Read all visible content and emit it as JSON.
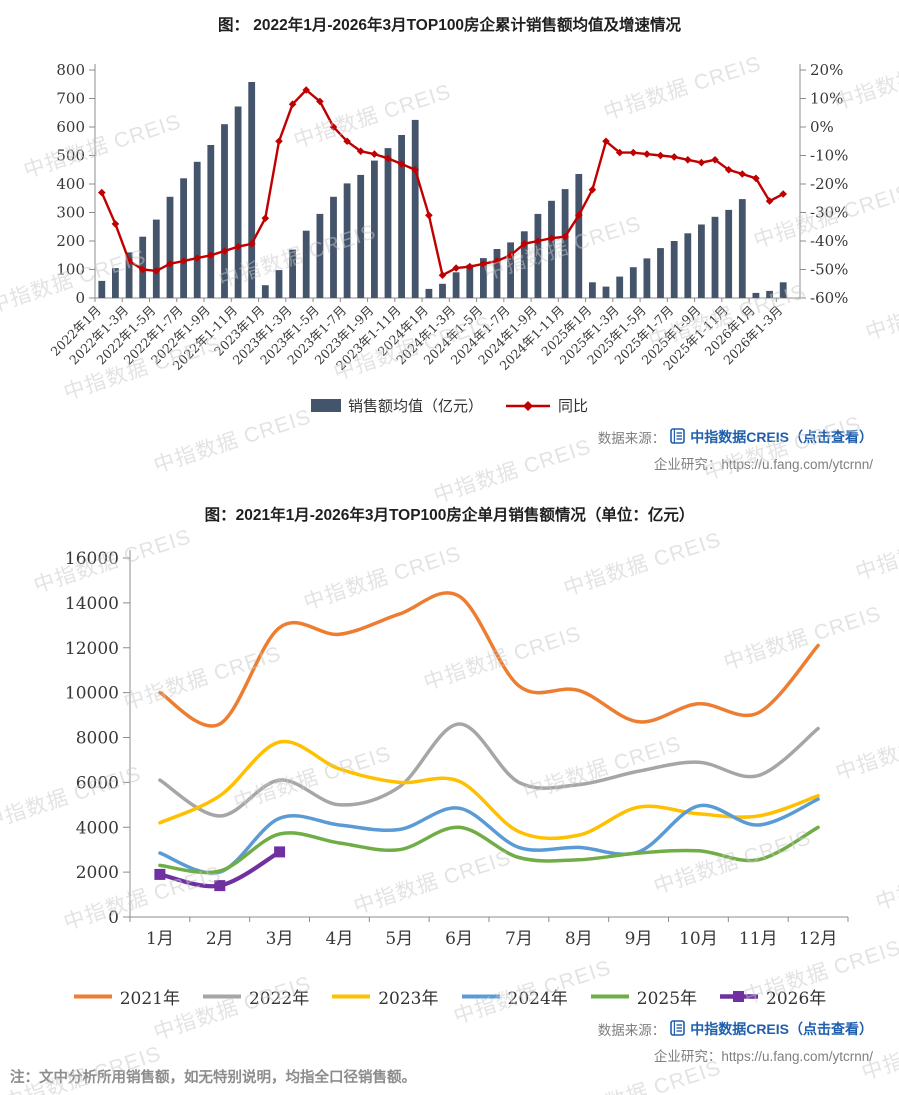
{
  "watermark": {
    "text": "中指数据 CREIS"
  },
  "source": {
    "label": "数据来源：",
    "link_text": "中指数据CREIS（点击查看）",
    "research_text": "企业研究：https://u.fang.com/ytcrnn/"
  },
  "note": "注：文中分析所用销售额，如无特别说明，均指全口径销售额。",
  "chart_data": [
    {
      "type": "bar+line",
      "title": "图： 2022年1月-2026年3月TOP100房企累计销售额均值及增速情况",
      "x_tick_labels": [
        "2022年1月",
        "2022年1-3月",
        "2022年1-5月",
        "2022年1-7月",
        "2022年1-9月",
        "2022年1-11月",
        "2023年1月",
        "2023年1-3月",
        "2023年1-5月",
        "2023年1-7月",
        "2023年1-9月",
        "2023年1-11月",
        "2024年1月",
        "2024年1-3月",
        "2024年1-5月",
        "2024年1-7月",
        "2024年1-9月",
        "2024年1-11月",
        "2025年1月",
        "2025年1-3月",
        "2025年1-5月",
        "2025年1-7月",
        "2025年1-9月",
        "2025年1-11月",
        "2026年1月",
        "2026年1-3月"
      ],
      "x_label_step": 2,
      "y_left": {
        "min": 0,
        "max": 800,
        "step": 100
      },
      "y_right": {
        "min": -60,
        "max": 20,
        "step": 10,
        "unit": "%"
      },
      "bar_series": {
        "name": "销售额均值（亿元）",
        "color": "#44546A",
        "values": [
          60,
          105,
          160,
          215,
          275,
          355,
          420,
          478,
          537,
          610,
          672,
          758,
          45,
          98,
          170,
          236,
          295,
          355,
          402,
          432,
          482,
          526,
          572,
          625,
          32,
          50,
          90,
          117,
          140,
          172,
          195,
          234,
          295,
          341,
          382,
          435,
          55,
          40,
          75,
          108,
          139,
          175,
          200,
          227,
          258,
          285,
          309,
          347,
          18,
          25,
          55
        ]
      },
      "line_series": {
        "name": "同比",
        "color": "#C00000",
        "values": [
          -23,
          -34,
          -47,
          -50,
          -50.5,
          -48,
          -47,
          -46,
          -45,
          -43.5,
          -42,
          -41,
          -32,
          -5,
          8,
          13,
          9,
          0,
          -5,
          -8.5,
          -9.5,
          -11,
          -13,
          -15,
          -31,
          -52,
          -49.5,
          -49,
          -48,
          -47,
          -45,
          -41,
          -40,
          -39,
          -38.5,
          -31,
          -22,
          -5,
          -9,
          -9,
          -9.5,
          -10,
          -10.5,
          -11.5,
          -12.5,
          -11.5,
          -15,
          -16.5,
          -18,
          -26,
          -23.5
        ]
      }
    },
    {
      "type": "line",
      "title": "图：2021年1月-2026年3月TOP100房企单月销售额情况（单位：亿元）",
      "categories": [
        "1月",
        "2月",
        "3月",
        "4月",
        "5月",
        "6月",
        "7月",
        "8月",
        "9月",
        "10月",
        "11月",
        "12月"
      ],
      "y_axis": {
        "min": 0,
        "max": 16000,
        "step": 2000
      },
      "series": [
        {
          "name": "2021年",
          "color": "#ED7D31",
          "values": [
            10000,
            8600,
            12900,
            12600,
            13500,
            14300,
            10300,
            10100,
            8700,
            9500,
            9100,
            12100
          ]
        },
        {
          "name": "2022年",
          "color": "#A6A6A6",
          "values": [
            6100,
            4500,
            6100,
            5000,
            5800,
            8600,
            6000,
            5900,
            6500,
            6900,
            6300,
            8400
          ]
        },
        {
          "name": "2023年",
          "color": "#FFC000",
          "values": [
            4200,
            5400,
            7800,
            6600,
            6000,
            6050,
            3800,
            3650,
            4900,
            4600,
            4500,
            5400
          ]
        },
        {
          "name": "2024年",
          "color": "#5B9BD5",
          "values": [
            2850,
            2000,
            4400,
            4100,
            3900,
            4850,
            3100,
            3100,
            2900,
            4950,
            4100,
            5250
          ]
        },
        {
          "name": "2025年",
          "color": "#70AD47",
          "values": [
            2300,
            2050,
            3700,
            3300,
            3000,
            4000,
            2650,
            2550,
            2850,
            2950,
            2550,
            4000
          ]
        },
        {
          "name": "2026年",
          "color": "#7030A0",
          "marker": "square",
          "values": [
            1900,
            1400,
            2900
          ]
        }
      ]
    }
  ]
}
